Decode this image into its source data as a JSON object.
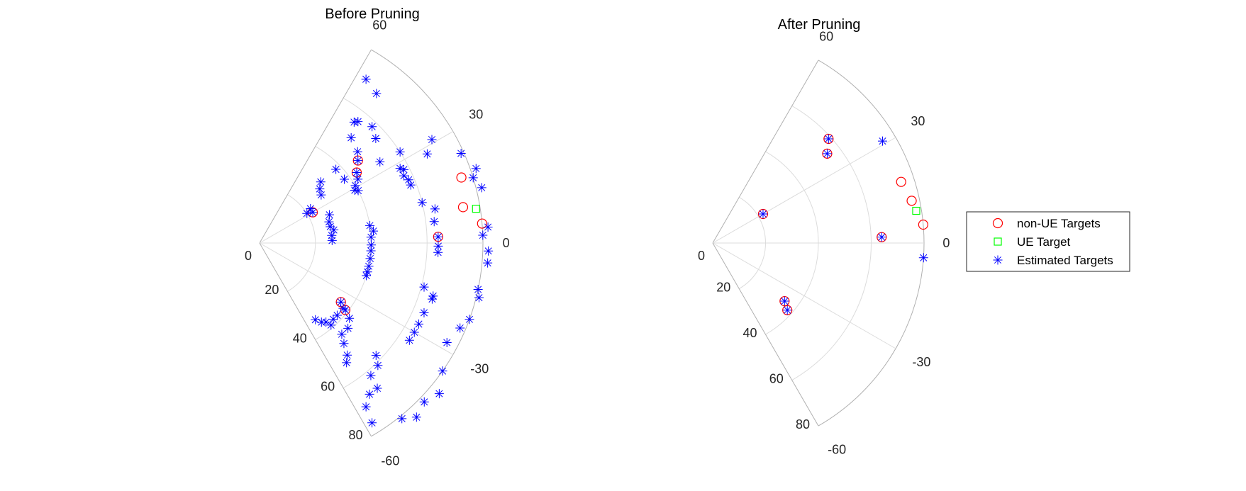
{
  "chart_data": [
    {
      "type": "scatter",
      "subtype": "polar",
      "title": "Before Pruning",
      "theta_ticks": [
        60,
        30,
        0,
        -30,
        -60
      ],
      "r_ticks": [
        0,
        20,
        40,
        60,
        80
      ],
      "theta_range": [
        -60,
        60
      ],
      "r_range": [
        0,
        80
      ],
      "grid": true,
      "series": [
        {
          "name": "non-UE Targets",
          "marker": "circle",
          "color": "#ff0000",
          "points": [
            [
              40,
              46
            ],
            [
              36,
              43
            ],
            [
              30,
              22
            ],
            [
              10,
              74
            ],
            [
              18,
              76
            ],
            [
              5,
              80
            ],
            [
              -36,
              36
            ],
            [
              -38,
              39
            ],
            [
              2,
              64
            ]
          ]
        },
        {
          "name": "UE Target",
          "marker": "square",
          "color": "#00ff00",
          "points": [
            [
              9,
              78.5
            ]
          ]
        },
        {
          "name": "Estimated Targets",
          "marker": "star",
          "color": "#0000ff",
          "points": [
            [
              57,
              70
            ],
            [
              52,
              68
            ],
            [
              46,
              58
            ],
            [
              40,
              46
            ],
            [
              36,
              43
            ],
            [
              34,
              52
            ],
            [
              42,
              56
            ],
            [
              51,
              56
            ],
            [
              52,
              55
            ],
            [
              49,
              50
            ],
            [
              43,
              48
            ],
            [
              33,
              42
            ],
            [
              37,
              38
            ],
            [
              27,
              58
            ],
            [
              28,
              68
            ],
            [
              33,
              60
            ],
            [
              31,
              72
            ],
            [
              44,
              38
            ],
            [
              45,
              31
            ],
            [
              42,
              29
            ],
            [
              38,
              28
            ],
            [
              34,
              22
            ],
            [
              32,
              20
            ],
            [
              30,
              22
            ],
            [
              31,
              40
            ],
            [
              29,
              39
            ],
            [
              28,
              40
            ],
            [
              22,
              27
            ],
            [
              17,
              26
            ],
            [
              13,
              26
            ],
            [
              10,
              27
            ],
            [
              6,
              26
            ],
            [
              2,
              26
            ],
            [
              9,
              40
            ],
            [
              6,
              41
            ],
            [
              3,
              40
            ],
            [
              -1,
              40
            ],
            [
              -4,
              40
            ],
            [
              -8,
              40
            ],
            [
              -12,
              40
            ],
            [
              -15,
              40
            ],
            [
              -17,
              40
            ],
            [
              28,
              57
            ],
            [
              25,
              57
            ],
            [
              23,
              58
            ],
            [
              21,
              58
            ],
            [
              14,
              60
            ],
            [
              11,
              64
            ],
            [
              7,
              63
            ],
            [
              2,
              64
            ],
            [
              -1,
              64
            ],
            [
              -3,
              64
            ],
            [
              -15,
              61
            ],
            [
              -17,
              65
            ],
            [
              -18,
              65
            ],
            [
              -23,
              64
            ],
            [
              -27,
              64
            ],
            [
              -30,
              64
            ],
            [
              -33,
              64
            ],
            [
              24,
              79
            ],
            [
              19,
              82
            ],
            [
              17,
              80
            ],
            [
              14,
              82
            ],
            [
              4,
              82
            ],
            [
              2,
              80
            ],
            [
              -2,
              82
            ],
            [
              -5,
              82
            ],
            [
              -12,
              80
            ],
            [
              -14,
              81
            ],
            [
              -20,
              80
            ],
            [
              -23,
              78
            ],
            [
              -28,
              76
            ],
            [
              -36,
              36
            ],
            [
              -38,
              38
            ],
            [
              -43,
              38
            ],
            [
              -46,
              38
            ],
            [
              -49,
              39
            ],
            [
              -50,
              37
            ],
            [
              -52,
              36
            ],
            [
              -54,
              34
            ],
            [
              -38,
              39
            ],
            [
              -40,
              42
            ],
            [
              -44,
              44
            ],
            [
              -48,
              44
            ],
            [
              -50,
              47
            ],
            [
              -52,
              51
            ],
            [
              -54,
              53
            ],
            [
              -44,
              58
            ],
            [
              -46,
              61
            ],
            [
              -50,
              62
            ],
            [
              -51,
              67
            ],
            [
              -54,
              67
            ],
            [
              -57,
              70
            ],
            [
              -58,
              76
            ],
            [
              -51,
              81
            ],
            [
              -48,
              84
            ],
            [
              -44,
              82
            ],
            [
              -40,
              84
            ],
            [
              -35,
              80
            ]
          ]
        }
      ]
    },
    {
      "type": "scatter",
      "subtype": "polar",
      "title": "After Pruning",
      "theta_ticks": [
        60,
        30,
        0,
        -30,
        -60
      ],
      "r_ticks": [
        0,
        20,
        40,
        60,
        80
      ],
      "theta_range": [
        -60,
        60
      ],
      "r_range": [
        0,
        80
      ],
      "grid": true,
      "series": [
        {
          "name": "non-UE Targets",
          "marker": "circle",
          "color": "#ff0000",
          "points": [
            [
              30,
              22
            ],
            [
              42,
              59
            ],
            [
              38,
              55
            ],
            [
              18,
              75
            ],
            [
              12,
              77
            ],
            [
              5,
              80
            ],
            [
              2,
              64
            ],
            [
              -39,
              35
            ],
            [
              -42,
              38
            ]
          ]
        },
        {
          "name": "UE Target",
          "marker": "square",
          "color": "#00ff00",
          "points": [
            [
              9,
              78
            ]
          ]
        },
        {
          "name": "Estimated Targets",
          "marker": "star",
          "color": "#0000ff",
          "points": [
            [
              30,
              22
            ],
            [
              42,
              59
            ],
            [
              38,
              55
            ],
            [
              2,
              64
            ],
            [
              -39,
              35
            ],
            [
              -42,
              38
            ],
            [
              31,
              75
            ],
            [
              -4,
              80
            ]
          ]
        }
      ]
    }
  ],
  "legend": {
    "items": [
      {
        "label": "non-UE Targets",
        "marker": "circle",
        "color": "#ff0000"
      },
      {
        "label": "UE Target",
        "marker": "square",
        "color": "#00ff00"
      },
      {
        "label": "Estimated Targets",
        "marker": "star",
        "color": "#0000ff"
      }
    ]
  }
}
